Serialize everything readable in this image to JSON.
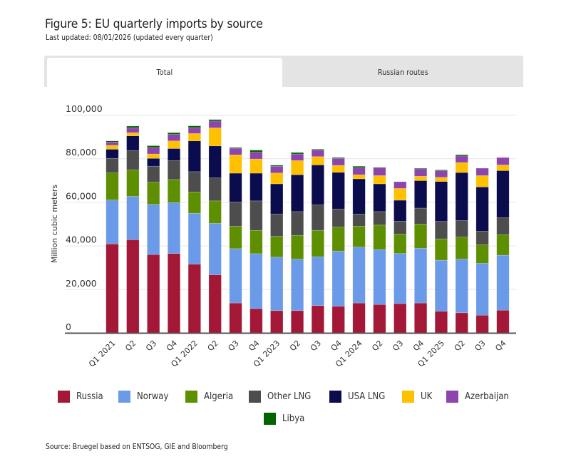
{
  "figure": {
    "title": "Figure 5: EU quarterly imports by source",
    "subtitle": "Last updated: 08/01/2026 (updated every quarter)",
    "source": "Source: Bruegel based on ENTSOG, GIE and Bloomberg"
  },
  "tabs": [
    {
      "label": "Total",
      "active": true
    },
    {
      "label": "Russian routes",
      "active": false
    }
  ],
  "chart_data": {
    "type": "bar",
    "stacked": true,
    "title": "Figure 5: EU quarterly imports by source",
    "xlabel": "",
    "ylabel": "Million cubic meters",
    "ylim": [
      0,
      100000
    ],
    "yticks": [
      0,
      20000,
      40000,
      60000,
      80000,
      100000
    ],
    "ytick_labels": [
      "0",
      "20,000",
      "40,000",
      "60,000",
      "80,000",
      "100,000"
    ],
    "grid": true,
    "legend_position": "bottom",
    "categories": [
      "Q1 2021",
      "Q2",
      "Q3",
      "Q4",
      "Q1 2022",
      "Q2",
      "Q3",
      "Q4",
      "Q1 2023",
      "Q2",
      "Q3",
      "Q4",
      "Q1 2024",
      "Q2",
      "Q3",
      "Q4",
      "Q1 2025",
      "Q2",
      "Q3",
      "Q4"
    ],
    "series": [
      {
        "name": "Russia",
        "color": "#a31836",
        "values": [
          40800,
          42700,
          35900,
          36400,
          31500,
          26600,
          13700,
          11100,
          10200,
          10200,
          12500,
          12200,
          13700,
          13000,
          13400,
          13700,
          9900,
          9200,
          8100,
          10400
        ]
      },
      {
        "name": "Norway",
        "color": "#6a9ae8",
        "values": [
          20100,
          19900,
          23000,
          23300,
          23300,
          23600,
          24900,
          25200,
          24500,
          23600,
          22400,
          25300,
          25600,
          25200,
          23000,
          25100,
          23400,
          24600,
          23800,
          25200
        ]
      },
      {
        "name": "Algeria",
        "color": "#5e8f00",
        "values": [
          12400,
          12100,
          10200,
          10600,
          9800,
          10300,
          10300,
          10700,
          9600,
          10900,
          12100,
          11000,
          9600,
          11200,
          8900,
          11100,
          9800,
          10100,
          8500,
          9400
        ]
      },
      {
        "name": "Other LNG",
        "color": "#4d4d4d",
        "values": [
          6700,
          8900,
          7300,
          8700,
          9300,
          10600,
          11100,
          13500,
          10200,
          10900,
          11700,
          8300,
          5600,
          6200,
          5900,
          7300,
          8000,
          7600,
          6200,
          7800
        ]
      },
      {
        "name": "USA LNG",
        "color": "#0b0c4d",
        "values": [
          4200,
          6700,
          3600,
          5500,
          14100,
          14600,
          13200,
          12700,
          13800,
          16900,
          18300,
          16800,
          16100,
          12700,
          9600,
          12600,
          18300,
          22000,
          20300,
          21600
        ]
      },
      {
        "name": "UK",
        "color": "#ffc000",
        "values": [
          1800,
          1500,
          2000,
          3500,
          3400,
          8300,
          8400,
          6500,
          5000,
          6500,
          3800,
          3200,
          1900,
          3800,
          5400,
          2000,
          1900,
          4600,
          5200,
          2600
        ]
      },
      {
        "name": "Azerbaijan",
        "color": "#8e44ad",
        "values": [
          1500,
          2200,
          3000,
          3000,
          2700,
          3100,
          3000,
          3100,
          3100,
          3000,
          3000,
          3200,
          3200,
          3600,
          3100,
          3400,
          3000,
          3000,
          3400,
          3400
        ]
      },
      {
        "name": "Libya",
        "color": "#006400",
        "values": [
          500,
          800,
          800,
          800,
          800,
          700,
          400,
          1000,
          500,
          700,
          400,
          400,
          700,
          200,
          0,
          300,
          400,
          600,
          0,
          0
        ]
      }
    ]
  }
}
